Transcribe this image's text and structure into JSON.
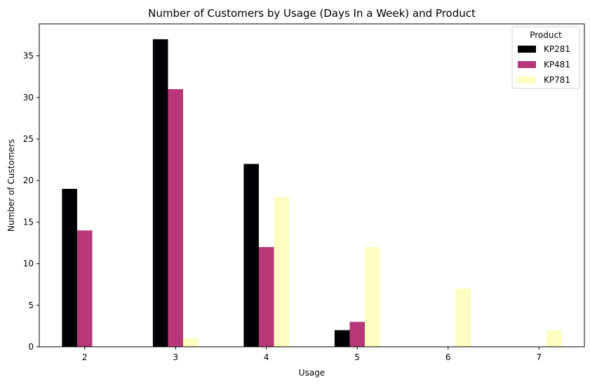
{
  "chart_data": {
    "type": "bar",
    "title": "Number of Customers by Usage (Days In a Week) and Product",
    "xlabel": "Usage",
    "ylabel": "Number of Customers",
    "categories": [
      "2",
      "3",
      "4",
      "5",
      "6",
      "7"
    ],
    "series": [
      {
        "name": "KP281",
        "color": "#000004",
        "values": [
          19,
          37,
          22,
          2,
          0,
          0
        ]
      },
      {
        "name": "KP481",
        "color": "#b73779",
        "values": [
          14,
          31,
          12,
          3,
          0,
          0
        ]
      },
      {
        "name": "KP781",
        "color": "#fcfdbf",
        "values": [
          0,
          1,
          18,
          12,
          7,
          2
        ]
      }
    ],
    "ylim": [
      0,
      38.85
    ],
    "yticks": [
      0,
      5,
      10,
      15,
      20,
      25,
      30,
      35
    ],
    "grid": false,
    "legend": {
      "title": "Product",
      "placement": "top-right"
    }
  }
}
